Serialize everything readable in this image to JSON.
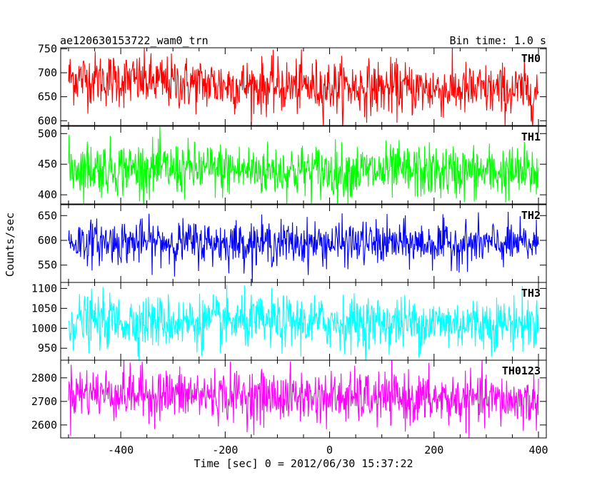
{
  "header": {
    "title": "ae120630153722_wam0_trn",
    "bin_time": "Bin time: 1.0 s"
  },
  "chart_data": {
    "type": "line",
    "xlabel": "Time [sec] 0 = 2012/06/30 15:37:22",
    "ylabel": "Counts/sec",
    "xlim": [
      -515,
      415
    ],
    "xticks": [
      -400,
      -200,
      0,
      200,
      400
    ],
    "x_start": -500,
    "x_end": 400,
    "x_step": 1,
    "panels": [
      {
        "name": "TH0",
        "color": "#ff0000",
        "ylim": [
          590,
          752
        ],
        "yticks": [
          600,
          650,
          700,
          750
        ],
        "mean": 672,
        "sigma": 28,
        "trend": [
          690,
          680,
          672,
          670,
          665,
          660
        ]
      },
      {
        "name": "TH1",
        "color": "#00ff00",
        "ylim": [
          385,
          512
        ],
        "yticks": [
          400,
          450,
          500
        ],
        "mean": 440,
        "sigma": 22,
        "trend": [
          445,
          442,
          440,
          438,
          437,
          436
        ]
      },
      {
        "name": "TH2",
        "color": "#0000ff",
        "ylim": [
          515,
          672
        ],
        "yticks": [
          550,
          600,
          650
        ],
        "mean": 595,
        "sigma": 22,
        "trend": [
          597,
          596,
          595,
          594,
          593,
          592
        ]
      },
      {
        "name": "TH3",
        "color": "#00ffff",
        "ylim": [
          920,
          1115
        ],
        "yticks": [
          950,
          1000,
          1050,
          1100
        ],
        "mean": 1015,
        "sigma": 33,
        "trend": [
          1018,
          1016,
          1015,
          1014,
          1013,
          1012
        ]
      },
      {
        "name": "TH0123",
        "color": "#ff00ff",
        "ylim": [
          2545,
          2875
        ],
        "yticks": [
          2600,
          2700,
          2800
        ],
        "mean": 2720,
        "sigma": 55,
        "trend": [
          2740,
          2730,
          2722,
          2715,
          2708,
          2700
        ]
      }
    ]
  }
}
